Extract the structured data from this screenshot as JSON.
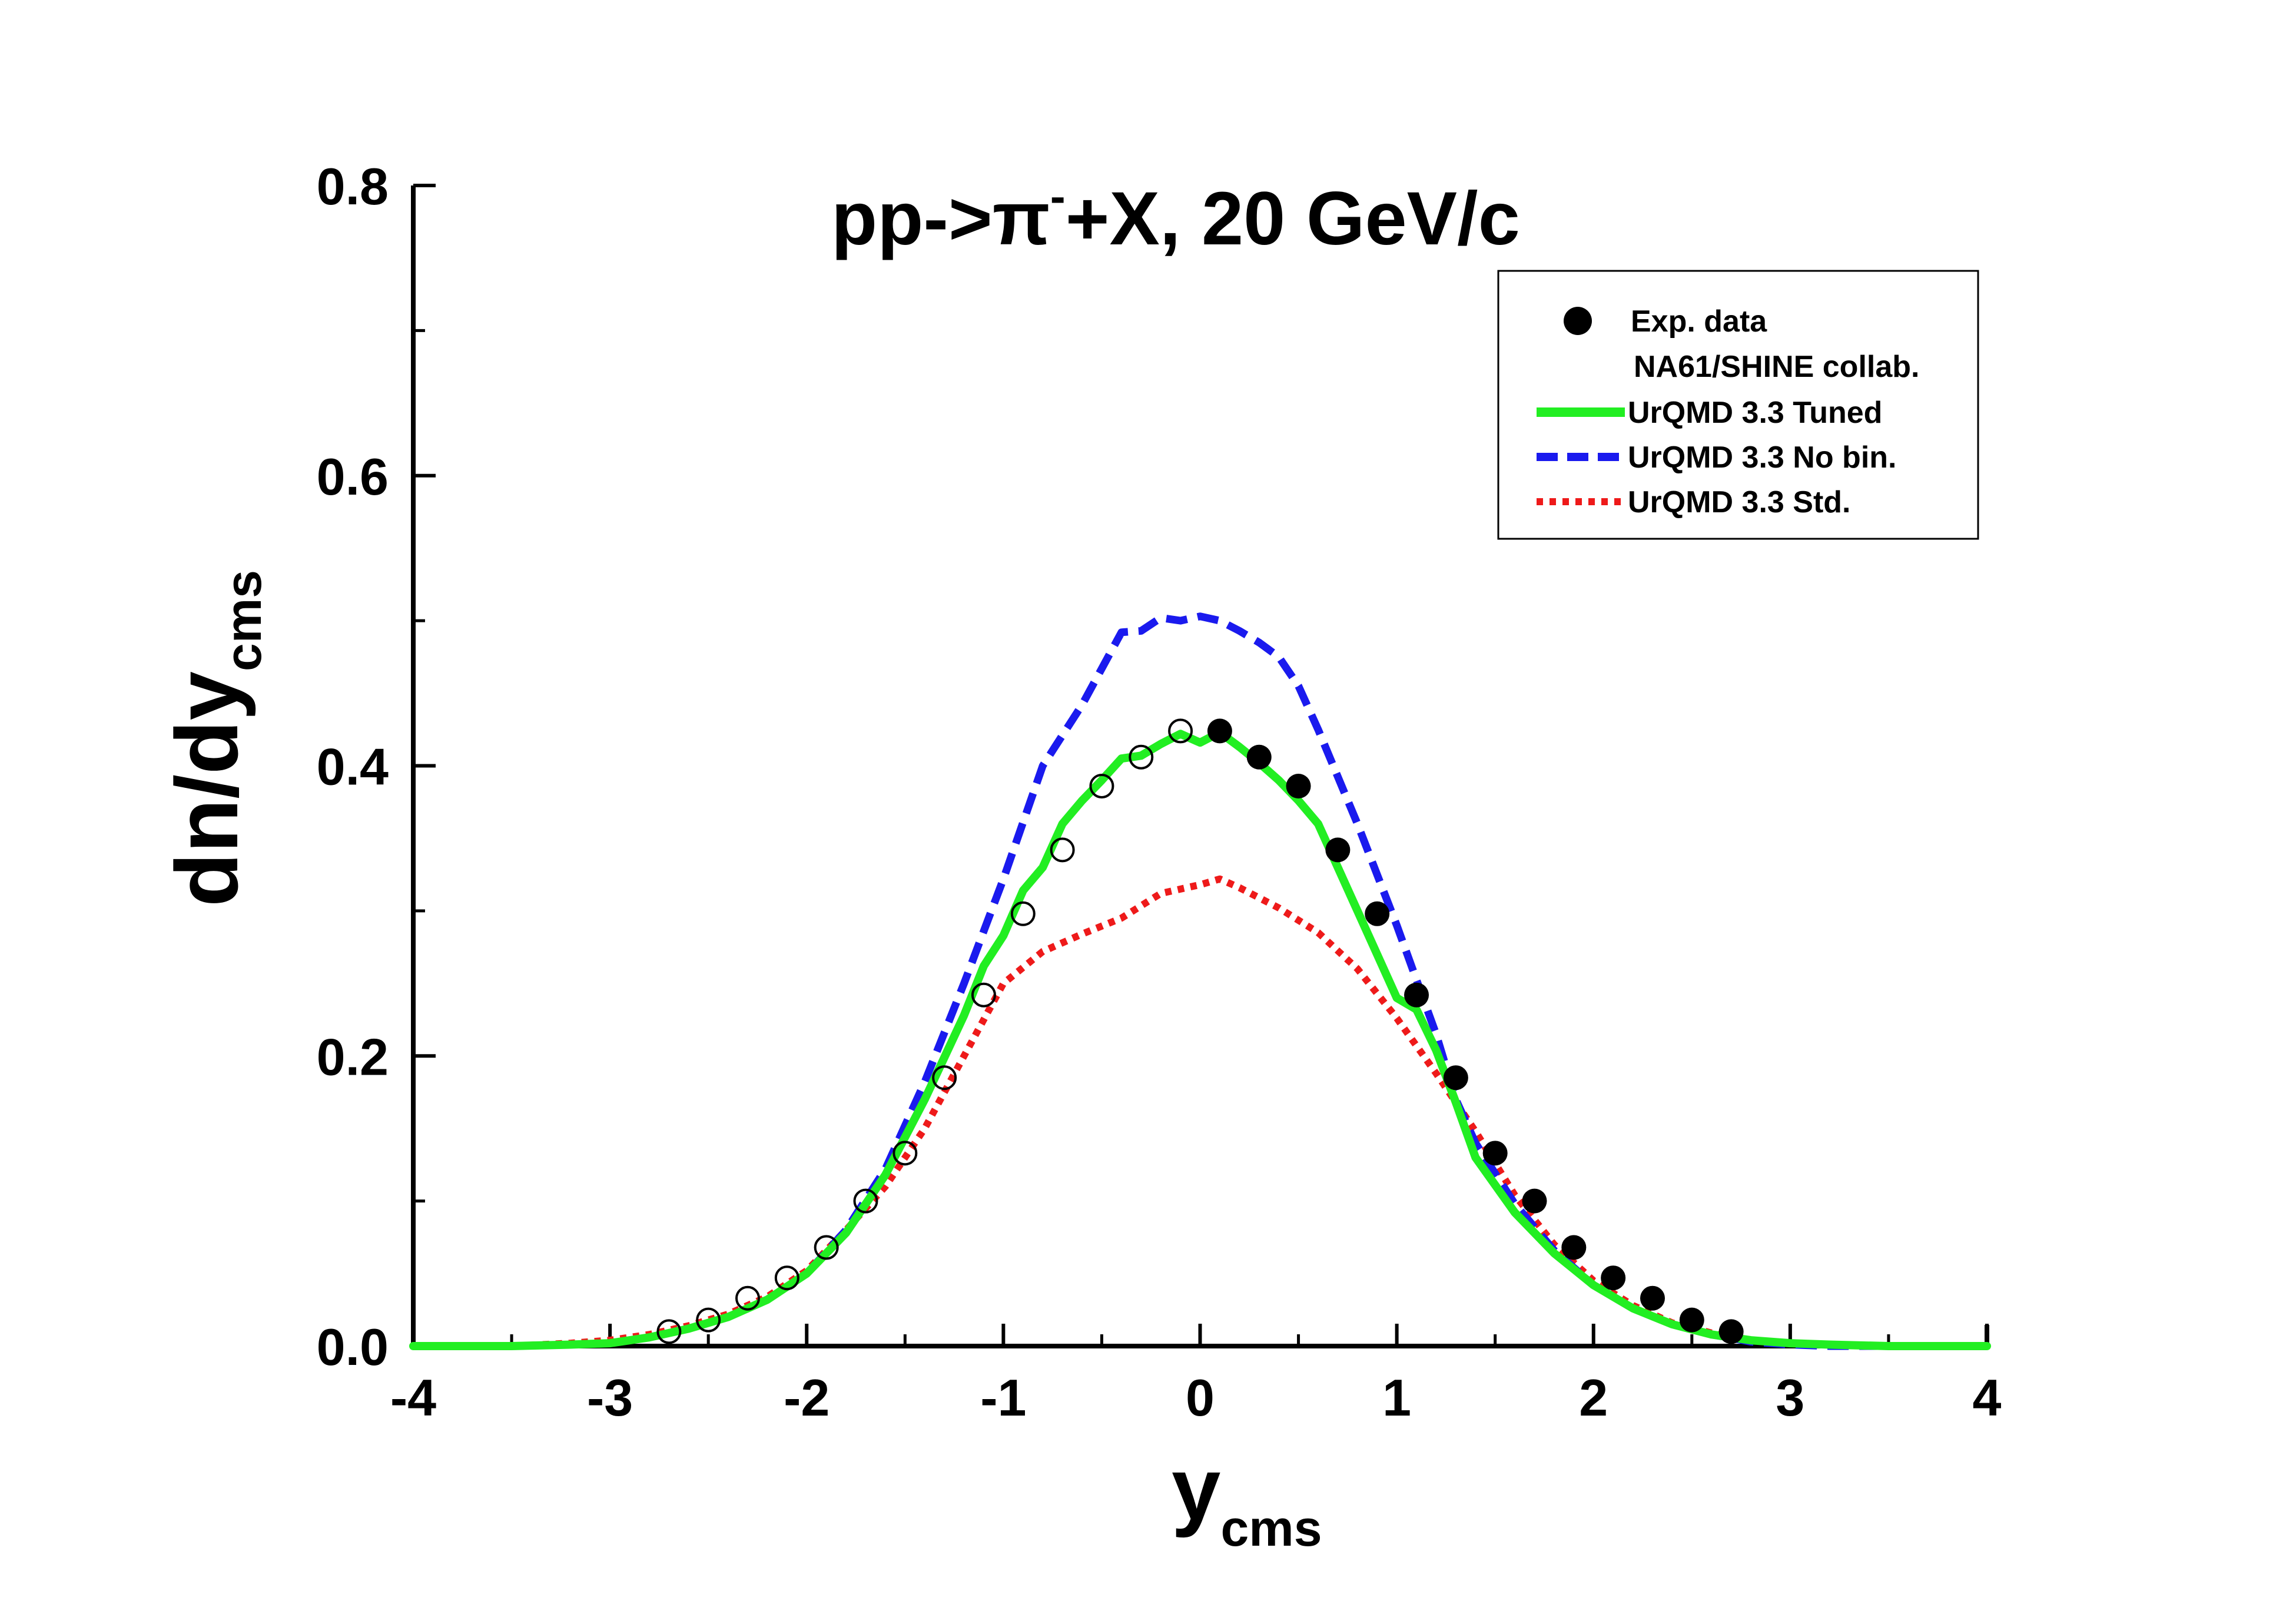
{
  "chart_data": {
    "type": "line",
    "title": {
      "main": "pp->",
      "particle": "π",
      "charge": "-",
      "rest": "+X, 20 GeV/c"
    },
    "xlabel": {
      "main": "y",
      "sub": "cms"
    },
    "ylabel": {
      "main": "dn/dy",
      "sub": "cms"
    },
    "xlim": [
      -4,
      4
    ],
    "ylim": [
      0,
      0.8
    ],
    "xticks": [
      -4,
      -3,
      -2,
      -1,
      0,
      1,
      2,
      3,
      4
    ],
    "yticks": [
      0.0,
      0.2,
      0.4,
      0.6,
      0.8
    ],
    "xtick_labels": [
      "-4",
      "-3",
      "-2",
      "-1",
      "0",
      "1",
      "2",
      "3",
      "4"
    ],
    "ytick_labels": [
      "0.0",
      "0.2",
      "0.4",
      "0.6",
      "0.8"
    ],
    "legend_position": "top-right",
    "legend": {
      "exp": "Exp. data",
      "exp_sub": "NA61/SHINE collab.",
      "tuned": "UrQMD 3.3 Tuned",
      "nobin": "UrQMD 3.3 No bin.",
      "std": "UrQMD 3.3 Std."
    },
    "colors": {
      "tuned": "#22ee22",
      "nobin": "#1a1aee",
      "std": "#ee1a1a",
      "data": "#000000"
    },
    "data_filled": {
      "x": [
        0.1,
        0.3,
        0.5,
        0.7,
        0.9,
        1.1,
        1.3,
        1.5,
        1.7,
        1.9,
        2.1,
        2.3,
        2.5,
        2.7
      ],
      "y": [
        0.424,
        0.406,
        0.386,
        0.342,
        0.298,
        0.242,
        0.185,
        0.133,
        0.1,
        0.068,
        0.047,
        0.033,
        0.018,
        0.01
      ]
    },
    "data_open": {
      "x": [
        -0.1,
        -0.3,
        -0.5,
        -0.7,
        -0.9,
        -1.1,
        -1.3,
        -1.5,
        -1.7,
        -1.9,
        -2.1,
        -2.3,
        -2.5,
        -2.7
      ],
      "y": [
        0.424,
        0.406,
        0.386,
        0.342,
        0.298,
        0.242,
        0.185,
        0.133,
        0.1,
        0.068,
        0.047,
        0.033,
        0.018,
        0.01
      ]
    },
    "series": [
      {
        "name": "UrQMD 3.3 Tuned",
        "key": "tuned",
        "x": [
          -4.0,
          -3.5,
          -3.2,
          -3.0,
          -2.8,
          -2.6,
          -2.4,
          -2.2,
          -2.0,
          -1.8,
          -1.6,
          -1.4,
          -1.2,
          -1.1,
          -1.0,
          -0.9,
          -0.8,
          -0.7,
          -0.6,
          -0.5,
          -0.4,
          -0.3,
          -0.2,
          -0.1,
          0.0,
          0.1,
          0.2,
          0.3,
          0.4,
          0.5,
          0.6,
          0.7,
          0.8,
          0.9,
          1.0,
          1.1,
          1.2,
          1.3,
          1.4,
          1.6,
          1.8,
          2.0,
          2.2,
          2.4,
          2.6,
          2.8,
          3.0,
          3.2,
          3.5,
          4.0
        ],
        "y": [
          0.0,
          0.0,
          0.001,
          0.002,
          0.006,
          0.012,
          0.02,
          0.032,
          0.05,
          0.078,
          0.118,
          0.17,
          0.228,
          0.262,
          0.283,
          0.314,
          0.33,
          0.36,
          0.376,
          0.39,
          0.405,
          0.407,
          0.415,
          0.422,
          0.416,
          0.423,
          0.413,
          0.402,
          0.39,
          0.376,
          0.36,
          0.33,
          0.3,
          0.27,
          0.24,
          0.232,
          0.204,
          0.168,
          0.13,
          0.092,
          0.064,
          0.042,
          0.026,
          0.015,
          0.008,
          0.004,
          0.002,
          0.001,
          0.0,
          0.0
        ]
      },
      {
        "name": "UrQMD 3.3 No bin.",
        "key": "nobin",
        "x": [
          -4.0,
          -3.5,
          -3.2,
          -3.0,
          -2.8,
          -2.6,
          -2.4,
          -2.2,
          -2.0,
          -1.8,
          -1.6,
          -1.4,
          -1.2,
          -1.0,
          -0.8,
          -0.6,
          -0.4,
          -0.3,
          -0.2,
          -0.1,
          0.0,
          0.1,
          0.2,
          0.3,
          0.4,
          0.5,
          0.6,
          0.8,
          1.0,
          1.2,
          1.3,
          1.4,
          1.6,
          1.8,
          2.0,
          2.2,
          2.4,
          2.6,
          2.8,
          3.0,
          3.2,
          3.5,
          4.0
        ],
        "y": [
          0.0,
          0.0,
          0.001,
          0.002,
          0.006,
          0.012,
          0.02,
          0.032,
          0.05,
          0.08,
          0.122,
          0.182,
          0.25,
          0.322,
          0.4,
          0.442,
          0.492,
          0.493,
          0.502,
          0.5,
          0.503,
          0.5,
          0.493,
          0.485,
          0.475,
          0.455,
          0.425,
          0.36,
          0.29,
          0.215,
          0.17,
          0.14,
          0.098,
          0.066,
          0.042,
          0.026,
          0.015,
          0.008,
          0.003,
          0.001,
          0.0,
          0.0,
          0.0
        ]
      },
      {
        "name": "UrQMD 3.3 Std.",
        "key": "std",
        "x": [
          -4.0,
          -3.5,
          -3.2,
          -3.0,
          -2.8,
          -2.6,
          -2.4,
          -2.2,
          -2.0,
          -1.8,
          -1.6,
          -1.4,
          -1.2,
          -1.0,
          -0.8,
          -0.6,
          -0.4,
          -0.2,
          0.0,
          0.1,
          0.2,
          0.4,
          0.6,
          0.8,
          1.0,
          1.2,
          1.4,
          1.6,
          1.8,
          2.0,
          2.2,
          2.4,
          2.6,
          2.8,
          3.0,
          3.2,
          3.5,
          4.0
        ],
        "y": [
          0.0,
          0.0,
          0.002,
          0.004,
          0.008,
          0.014,
          0.022,
          0.034,
          0.052,
          0.08,
          0.11,
          0.15,
          0.2,
          0.25,
          0.272,
          0.284,
          0.295,
          0.312,
          0.318,
          0.322,
          0.316,
          0.302,
          0.285,
          0.26,
          0.226,
          0.188,
          0.148,
          0.104,
          0.07,
          0.045,
          0.028,
          0.016,
          0.009,
          0.004,
          0.002,
          0.001,
          0.0,
          0.0
        ]
      }
    ]
  }
}
